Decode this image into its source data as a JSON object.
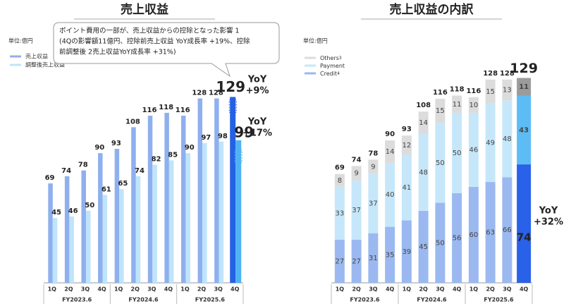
{
  "chart_data": [
    {
      "type": "bar",
      "title": "売上収益",
      "unit": "単位:億円",
      "categories": [
        "1Q",
        "2Q",
        "3Q",
        "4Q",
        "1Q",
        "2Q",
        "3Q",
        "4Q",
        "1Q",
        "2Q",
        "3Q",
        "4Q"
      ],
      "group_labels": [
        "FY2023.6",
        "FY2024.6",
        "FY2025.6"
      ],
      "series": [
        {
          "name": "売上収益",
          "color": "#8fb0ee",
          "highlight_color": "#2461e3",
          "values": [
            69,
            74,
            78,
            90,
            93,
            108,
            116,
            118,
            116,
            128,
            128,
            129
          ]
        },
        {
          "name": "調整後売上収益",
          "color": "#bfe4fb",
          "highlight_color": "#4fb3f3",
          "values": [
            45,
            46,
            50,
            61,
            65,
            74,
            82,
            85,
            90,
            97,
            98,
            99
          ]
        }
      ],
      "highlight_index": 11,
      "ylim": [
        0,
        140
      ],
      "callout": [
        "ポイント費用の一部が、売上収益からの控除となった影響 1",
        "(4Qの影響額11億円、控除前売上収益 YoY成長率 +19%、控除",
        "前調整後 2売上収益YoY成長率 +31%)"
      ],
      "annotations": [
        {
          "text": [
            "YoY",
            "+9%"
          ],
          "color": "#2461e3"
        },
        {
          "text": [
            "YoY",
            "+17%"
          ],
          "color": "#4fb3f3"
        }
      ]
    },
    {
      "type": "stacked_bar",
      "title": "売上収益の内訳",
      "unit": "単位:億円",
      "categories": [
        "1Q",
        "2Q",
        "3Q",
        "4Q",
        "1Q",
        "2Q",
        "3Q",
        "4Q",
        "1Q",
        "2Q",
        "3Q",
        "4Q"
      ],
      "group_labels": [
        "FY2023.6",
        "FY2024.6",
        "FY2025.6"
      ],
      "series": [
        {
          "name": "Credit",
          "note": "4",
          "color": "#9bb9f0",
          "highlight_color": "#2961e8",
          "values": [
            27,
            27,
            31,
            35,
            39,
            45,
            50,
            56,
            60,
            63,
            66,
            74
          ]
        },
        {
          "name": "Payment",
          "note": "",
          "color": "#c6e7fa",
          "highlight_color": "#5dbcf4",
          "values": [
            33,
            37,
            37,
            40,
            41,
            48,
            50,
            50,
            46,
            49,
            48,
            43
          ]
        },
        {
          "name": "Others",
          "note": "3",
          "color": "#dcdcdc",
          "highlight_color": "#9b9b9b",
          "values": [
            8,
            9,
            9,
            14,
            12,
            14,
            15,
            11,
            10,
            15,
            13,
            11
          ]
        }
      ],
      "totals": [
        69,
        74,
        78,
        90,
        93,
        108,
        116,
        118,
        116,
        128,
        128,
        129
      ],
      "highlight_index": 11,
      "ylim": [
        0,
        130
      ],
      "annotations": [
        {
          "text": [
            "YoY",
            "+32%"
          ],
          "color": "#1a2e8a"
        }
      ]
    }
  ]
}
